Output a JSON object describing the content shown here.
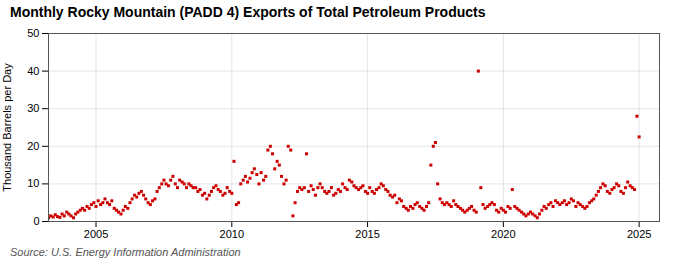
{
  "chart_data": {
    "type": "scatter",
    "title": "Monthly Rocky Mountain (PADD 4) Exports of Total Petroleum Products",
    "ylabel": "Thousand Barrels per Day",
    "caption": "Source: U.S. Energy Information Administration",
    "color": "#cc0000",
    "marker": "square",
    "grid": true,
    "xlim": [
      2003.25,
      2025.75
    ],
    "xticks": [
      2005,
      2010,
      2015,
      2020,
      2025
    ],
    "ylim": [
      0,
      50
    ],
    "yticks": [
      0,
      10,
      20,
      30,
      40,
      50
    ],
    "x": [
      2003.25,
      2003.33,
      2003.42,
      2003.5,
      2003.58,
      2003.67,
      2003.75,
      2003.83,
      2003.92,
      2004.0,
      2004.08,
      2004.17,
      2004.25,
      2004.33,
      2004.42,
      2004.5,
      2004.58,
      2004.67,
      2004.75,
      2004.83,
      2004.92,
      2005.0,
      2005.08,
      2005.17,
      2005.25,
      2005.33,
      2005.42,
      2005.5,
      2005.58,
      2005.67,
      2005.75,
      2005.83,
      2005.92,
      2006.0,
      2006.08,
      2006.17,
      2006.25,
      2006.33,
      2006.42,
      2006.5,
      2006.58,
      2006.67,
      2006.75,
      2006.83,
      2006.92,
      2007.0,
      2007.08,
      2007.17,
      2007.25,
      2007.33,
      2007.42,
      2007.5,
      2007.58,
      2007.67,
      2007.75,
      2007.83,
      2007.92,
      2008.0,
      2008.08,
      2008.17,
      2008.25,
      2008.33,
      2008.42,
      2008.5,
      2008.58,
      2008.67,
      2008.75,
      2008.83,
      2008.92,
      2009.0,
      2009.08,
      2009.17,
      2009.25,
      2009.33,
      2009.42,
      2009.5,
      2009.58,
      2009.67,
      2009.75,
      2009.83,
      2009.92,
      2010.0,
      2010.08,
      2010.17,
      2010.25,
      2010.33,
      2010.42,
      2010.5,
      2010.58,
      2010.67,
      2010.75,
      2010.83,
      2010.92,
      2011.0,
      2011.08,
      2011.17,
      2011.25,
      2011.33,
      2011.42,
      2011.5,
      2011.58,
      2011.67,
      2011.75,
      2011.83,
      2011.92,
      2012.0,
      2012.08,
      2012.17,
      2012.25,
      2012.33,
      2012.42,
      2012.5,
      2012.58,
      2012.67,
      2012.75,
      2012.83,
      2012.92,
      2013.0,
      2013.08,
      2013.17,
      2013.25,
      2013.33,
      2013.42,
      2013.5,
      2013.58,
      2013.67,
      2013.75,
      2013.83,
      2013.92,
      2014.0,
      2014.08,
      2014.17,
      2014.25,
      2014.33,
      2014.42,
      2014.5,
      2014.58,
      2014.67,
      2014.75,
      2014.83,
      2014.92,
      2015.0,
      2015.08,
      2015.17,
      2015.25,
      2015.33,
      2015.42,
      2015.5,
      2015.58,
      2015.67,
      2015.75,
      2015.83,
      2015.92,
      2016.0,
      2016.08,
      2016.17,
      2016.25,
      2016.33,
      2016.42,
      2016.5,
      2016.58,
      2016.67,
      2016.75,
      2016.83,
      2016.92,
      2017.0,
      2017.08,
      2017.17,
      2017.25,
      2017.33,
      2017.42,
      2017.5,
      2017.58,
      2017.67,
      2017.75,
      2017.83,
      2017.92,
      2018.0,
      2018.08,
      2018.17,
      2018.25,
      2018.33,
      2018.42,
      2018.5,
      2018.58,
      2018.67,
      2018.75,
      2018.83,
      2018.92,
      2019.0,
      2019.08,
      2019.17,
      2019.25,
      2019.33,
      2019.42,
      2019.5,
      2019.58,
      2019.67,
      2019.75,
      2019.83,
      2019.92,
      2020.0,
      2020.08,
      2020.17,
      2020.25,
      2020.33,
      2020.42,
      2020.5,
      2020.58,
      2020.67,
      2020.75,
      2020.83,
      2020.92,
      2021.0,
      2021.08,
      2021.17,
      2021.25,
      2021.33,
      2021.42,
      2021.5,
      2021.58,
      2021.67,
      2021.75,
      2021.83,
      2021.92,
      2022.0,
      2022.08,
      2022.17,
      2022.25,
      2022.33,
      2022.42,
      2022.5,
      2022.58,
      2022.67,
      2022.75,
      2022.83,
      2022.92,
      2023.0,
      2023.08,
      2023.17,
      2023.25,
      2023.33,
      2023.42,
      2023.5,
      2023.58,
      2023.67,
      2023.75,
      2023.83,
      2023.92,
      2024.0,
      2024.08,
      2024.17,
      2024.25,
      2024.33,
      2024.42,
      2024.5,
      2024.58,
      2024.67,
      2024.75,
      2024.83,
      2024.92,
      2025.0
    ],
    "values": [
      1.0,
      1.5,
      1.2,
      1.8,
      1.3,
      1.1,
      2.0,
      1.5,
      2.5,
      2.0,
      1.5,
      1.0,
      2.0,
      2.5,
      3.0,
      3.5,
      3.0,
      4.0,
      3.5,
      4.5,
      5.0,
      4.0,
      5.5,
      4.5,
      5.0,
      6.0,
      5.0,
      4.5,
      5.5,
      3.5,
      3.0,
      2.5,
      2.0,
      3.0,
      4.0,
      3.5,
      5.0,
      6.0,
      7.0,
      6.5,
      7.5,
      8.0,
      7.0,
      6.0,
      5.0,
      4.5,
      5.5,
      6.0,
      8.0,
      9.0,
      10.0,
      11.0,
      10.0,
      9.5,
      11.0,
      12.0,
      10.0,
      9.0,
      11.0,
      10.5,
      10.0,
      9.0,
      10.0,
      9.5,
      9.0,
      9.0,
      8.0,
      8.5,
      7.0,
      7.5,
      6.0,
      7.0,
      8.0,
      9.0,
      9.5,
      8.5,
      8.0,
      7.0,
      7.5,
      9.0,
      8.0,
      7.5,
      16.0,
      4.5,
      5.0,
      10.0,
      11.0,
      12.0,
      10.5,
      11.5,
      13.0,
      14.0,
      12.5,
      10.0,
      13.0,
      11.0,
      12.0,
      19.0,
      20.0,
      18.0,
      14.0,
      16.0,
      15.0,
      12.0,
      10.0,
      11.0,
      20.0,
      19.0,
      1.5,
      5.0,
      8.0,
      9.0,
      8.5,
      9.0,
      18.0,
      8.0,
      9.5,
      8.5,
      7.0,
      9.0,
      10.0,
      9.0,
      8.0,
      7.5,
      8.0,
      9.0,
      7.0,
      7.5,
      8.5,
      8.0,
      10.0,
      9.0,
      8.5,
      11.0,
      10.5,
      9.5,
      9.0,
      8.5,
      9.0,
      9.5,
      8.0,
      7.5,
      9.0,
      8.0,
      7.5,
      8.5,
      9.0,
      10.0,
      9.5,
      8.5,
      8.0,
      7.0,
      6.5,
      7.0,
      5.0,
      6.0,
      5.5,
      4.0,
      3.5,
      3.0,
      4.0,
      3.5,
      4.5,
      5.0,
      4.0,
      3.5,
      3.0,
      4.0,
      5.0,
      15.0,
      20.0,
      21.0,
      10.0,
      6.0,
      5.0,
      4.5,
      5.0,
      4.5,
      4.0,
      5.5,
      4.5,
      4.0,
      3.5,
      3.0,
      2.5,
      3.0,
      3.5,
      4.0,
      3.0,
      2.5,
      40.0,
      9.0,
      4.5,
      3.5,
      4.0,
      4.5,
      5.0,
      4.5,
      3.0,
      2.5,
      3.5,
      3.0,
      2.5,
      4.0,
      3.5,
      8.5,
      4.0,
      3.5,
      3.0,
      2.5,
      2.0,
      1.5,
      2.0,
      2.5,
      2.0,
      1.5,
      1.0,
      2.0,
      3.0,
      4.0,
      3.5,
      4.5,
      5.0,
      4.0,
      5.5,
      5.0,
      4.5,
      5.0,
      5.5,
      4.5,
      5.0,
      6.0,
      5.5,
      4.0,
      5.0,
      4.5,
      4.0,
      3.5,
      4.0,
      5.0,
      5.5,
      6.0,
      7.0,
      8.0,
      9.0,
      10.0,
      9.5,
      8.0,
      7.5,
      8.5,
      9.0,
      10.0,
      9.5,
      8.0,
      7.5,
      9.0,
      10.5,
      9.5,
      9.0,
      8.5,
      28.0,
      22.5
    ]
  }
}
